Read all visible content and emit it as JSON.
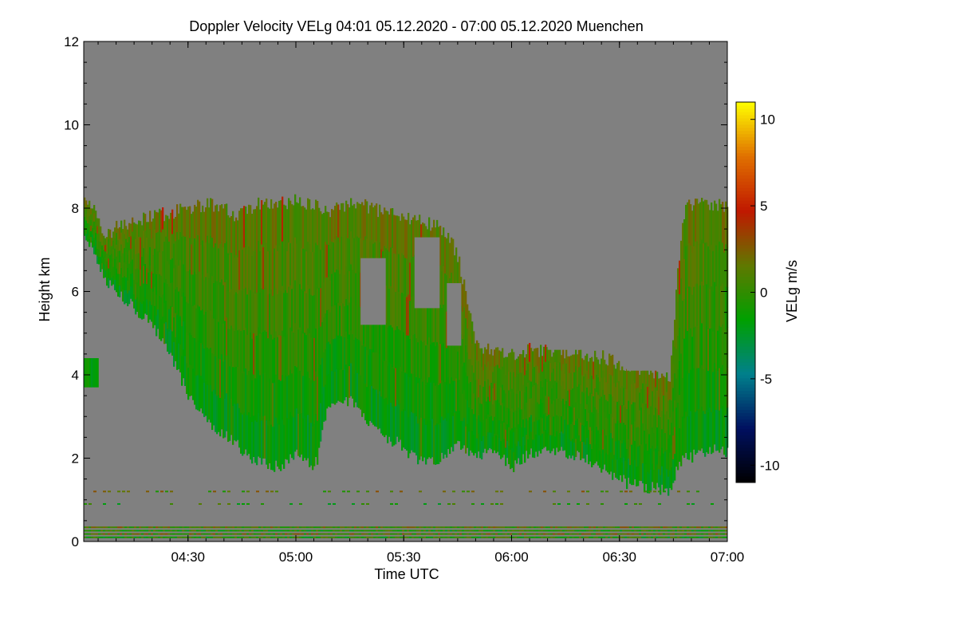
{
  "chart_data": {
    "type": "heatmap",
    "title": "Doppler Velocity VELg   04:01 05.12.2020 - 07:00 05.12.2020 Muenchen",
    "xlabel": "Time UTC",
    "ylabel": "Height km",
    "xlim": [
      "04:01",
      "07:00"
    ],
    "ylim": [
      0,
      12
    ],
    "x_ticks": [
      "04:30",
      "05:00",
      "05:30",
      "06:00",
      "06:30",
      "07:00"
    ],
    "x_tick_minutes": [
      270,
      300,
      330,
      360,
      390,
      420
    ],
    "x_start_minute": 241,
    "x_end_minute": 420,
    "y_ticks": [
      "0",
      "2",
      "4",
      "6",
      "8",
      "10",
      "12"
    ],
    "y_tick_values": [
      0,
      2,
      4,
      6,
      8,
      10,
      12
    ],
    "background_color": "#808080",
    "colorbar": {
      "label": "VELg m/s",
      "range": [
        -11,
        11
      ],
      "ticks": [
        "10",
        "5",
        "0",
        "-5",
        "-10"
      ],
      "tick_values": [
        10,
        5,
        0,
        -5,
        -10
      ],
      "colors": [
        "#000000",
        "#001060",
        "#00808c",
        "#00a000",
        "#607800",
        "#c01800",
        "#e07000",
        "#ffff00"
      ]
    },
    "cloud_layer": {
      "time_minutes": [
        241,
        244,
        247,
        250,
        255,
        260,
        265,
        270,
        275,
        280,
        283,
        286,
        290,
        295,
        300,
        304,
        306,
        308,
        312,
        316,
        318,
        320,
        324,
        328,
        333,
        338,
        342,
        345,
        350,
        355,
        360,
        365,
        372,
        380,
        386,
        392,
        398,
        404,
        406,
        408,
        412,
        416,
        420
      ],
      "top_km": [
        8.2,
        7.9,
        7.3,
        7.6,
        7.7,
        7.8,
        7.9,
        8.0,
        8.1,
        8.0,
        7.8,
        8.0,
        8.1,
        8.1,
        8.2,
        8.1,
        8.0,
        7.9,
        8.0,
        8.1,
        8.1,
        8.0,
        7.9,
        7.8,
        7.7,
        7.6,
        7.4,
        6.8,
        4.7,
        4.6,
        4.5,
        4.6,
        4.6,
        4.5,
        4.4,
        4.2,
        4.1,
        4.0,
        6.5,
        8.0,
        8.2,
        8.1,
        8.0
      ],
      "base_km": [
        7.4,
        6.8,
        6.2,
        6.0,
        5.6,
        5.2,
        4.5,
        3.5,
        2.9,
        2.6,
        2.4,
        2.1,
        1.9,
        1.8,
        2.1,
        1.8,
        2.0,
        3.0,
        3.5,
        3.3,
        3.0,
        2.9,
        2.5,
        2.4,
        2.0,
        1.9,
        2.1,
        2.3,
        2.0,
        2.2,
        1.8,
        2.1,
        2.2,
        2.0,
        1.7,
        1.4,
        1.3,
        1.2,
        1.8,
        2.0,
        2.1,
        2.2,
        2.1
      ],
      "velocity_range_m_s": [
        -2,
        3
      ]
    },
    "isolated_echo": {
      "time_minutes": [
        241,
        245
      ],
      "height_km": [
        3.7,
        4.4
      ]
    },
    "near_ground_clutter_heights_km": [
      0.1,
      0.18,
      0.26,
      0.34,
      0.9,
      1.2
    ],
    "grid": false,
    "legend": "none"
  }
}
